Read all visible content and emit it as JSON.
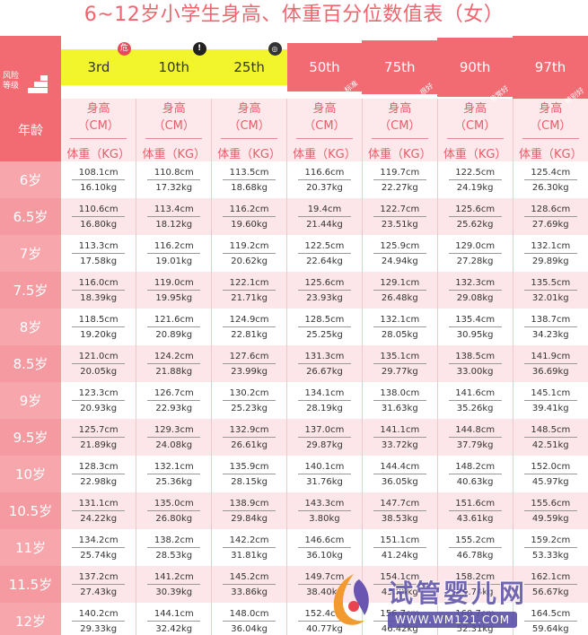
{
  "title": "6~12岁小学生身高、体重百分位数值表（女）",
  "risk_label": "风险等级",
  "age_header": "年龄",
  "unit_height": "身高（CM）",
  "unit_weight": "体重（KG）",
  "percentiles": [
    {
      "label": "3rd",
      "badge": "危",
      "tag": ""
    },
    {
      "label": "10th",
      "badge": "!",
      "tag": ""
    },
    {
      "label": "25th",
      "badge": "◎",
      "tag": ""
    },
    {
      "label": "50th",
      "badge": "",
      "tag": "标准"
    },
    {
      "label": "75th",
      "badge": "",
      "tag": "很好"
    },
    {
      "label": "90th",
      "badge": "",
      "tag": "非常好"
    },
    {
      "label": "97th",
      "badge": "",
      "tag": "特别好"
    }
  ],
  "rows": [
    {
      "age": "6岁",
      "h": [
        "108.1cm",
        "110.8cm",
        "113.5cm",
        "116.6cm",
        "119.7cm",
        "122.5cm",
        "125.4cm"
      ],
      "w": [
        "16.10kg",
        "17.32kg",
        "18.68kg",
        "20.37kg",
        "22.27kg",
        "24.19kg",
        "26.30kg"
      ]
    },
    {
      "age": "6.5岁",
      "h": [
        "110.6cm",
        "113.4cm",
        "116.2cm",
        "19.4cm",
        "122.7cm",
        "125.6cm",
        "128.6cm"
      ],
      "w": [
        "16.80kg",
        "18.12kg",
        "19.60kg",
        "21.44kg",
        "23.51kg",
        "25.62kg",
        "27.69kg"
      ]
    },
    {
      "age": "7岁",
      "h": [
        "113.3cm",
        "116.2cm",
        "119.2cm",
        "122.5cm",
        "125.9cm",
        "129.0cm",
        "132.1cm"
      ],
      "w": [
        "17.58kg",
        "19.01kg",
        "20.62kg",
        "22.64kg",
        "24.94kg",
        "27.28kg",
        "29.89kg"
      ]
    },
    {
      "age": "7.5岁",
      "h": [
        "116.0cm",
        "119.0cm",
        "122.1cm",
        "125.6cm",
        "129.1cm",
        "132.3cm",
        "135.5cm"
      ],
      "w": [
        "18.39kg",
        "19.95kg",
        "21.71kg",
        "23.93kg",
        "26.48kg",
        "29.08kg",
        "32.01kg"
      ]
    },
    {
      "age": "8岁",
      "h": [
        "118.5cm",
        "121.6cm",
        "124.9cm",
        "128.5cm",
        "132.1cm",
        "135.4cm",
        "138.7cm"
      ],
      "w": [
        "19.20kg",
        "20.89kg",
        "22.81kg",
        "25.25kg",
        "28.05kg",
        "30.95kg",
        "34.23kg"
      ]
    },
    {
      "age": "8.5岁",
      "h": [
        "121.0cm",
        "124.2cm",
        "127.6cm",
        "131.3cm",
        "135.1cm",
        "138.5cm",
        "141.9cm"
      ],
      "w": [
        "20.05kg",
        "21.88kg",
        "23.99kg",
        "26.67kg",
        "29.77kg",
        "33.00kg",
        "36.69kg"
      ]
    },
    {
      "age": "9岁",
      "h": [
        "123.3cm",
        "126.7cm",
        "130.2cm",
        "134.1cm",
        "138.0cm",
        "141.6cm",
        "145.1cm"
      ],
      "w": [
        "20.93kg",
        "22.93kg",
        "25.23kg",
        "28.19kg",
        "31.63kg",
        "35.26kg",
        "39.41kg"
      ]
    },
    {
      "age": "9.5岁",
      "h": [
        "125.7cm",
        "129.3cm",
        "132.9cm",
        "137.0cm",
        "141.1cm",
        "144.8cm",
        "148.5cm"
      ],
      "w": [
        "21.89kg",
        "24.08kg",
        "26.61kg",
        "29.87kg",
        "33.72kg",
        "37.79kg",
        "42.51kg"
      ]
    },
    {
      "age": "10岁",
      "h": [
        "128.3cm",
        "132.1cm",
        "135.9cm",
        "140.1cm",
        "144.4cm",
        "148.2cm",
        "152.0cm"
      ],
      "w": [
        "22.98kg",
        "25.36kg",
        "28.15kg",
        "31.76kg",
        "36.05kg",
        "40.63kg",
        "45.97kg"
      ]
    },
    {
      "age": "10.5岁",
      "h": [
        "131.1cm",
        "135.0cm",
        "138.9cm",
        "143.3cm",
        "147.7cm",
        "151.6cm",
        "155.6cm"
      ],
      "w": [
        "24.22kg",
        "26.80kg",
        "29.84kg",
        "3.80kg",
        "38.53kg",
        "43.61kg",
        "49.59kg"
      ]
    },
    {
      "age": "11岁",
      "h": [
        "134.2cm",
        "138.2cm",
        "142.2cm",
        "146.6cm",
        "151.1cm",
        "155.2cm",
        "159.2cm"
      ],
      "w": [
        "25.74kg",
        "28.53kg",
        "31.81kg",
        "36.10kg",
        "41.24kg",
        "46.78kg",
        "53.33kg"
      ]
    },
    {
      "age": "11.5岁",
      "h": [
        "137.2cm",
        "141.2cm",
        "145.2cm",
        "149.7cm",
        "154.1cm",
        "158.2cm",
        "162.1cm"
      ],
      "w": [
        "27.43kg",
        "30.39kg",
        "33.86kg",
        "38.40kg",
        "43.85kg",
        "49.74kg",
        "56.67kg"
      ]
    },
    {
      "age": "12岁",
      "h": [
        "140.2cm",
        "144.1cm",
        "148.0cm",
        "152.4cm",
        "156.7cm",
        "160.7cm",
        "164.5cm"
      ],
      "w": [
        "29.33kg",
        "32.42kg",
        "36.04kg",
        "40.77kg",
        "46.42kg",
        "52.31kg",
        "59.64kg"
      ]
    }
  ],
  "watermark": {
    "name": "试管婴儿网",
    "url": "WWW.WM121.COM"
  },
  "colors": {
    "accent": "#f26b73",
    "yellow": "#f3f52c",
    "title": "#f0646e",
    "row_alt": "#fde6e9"
  }
}
